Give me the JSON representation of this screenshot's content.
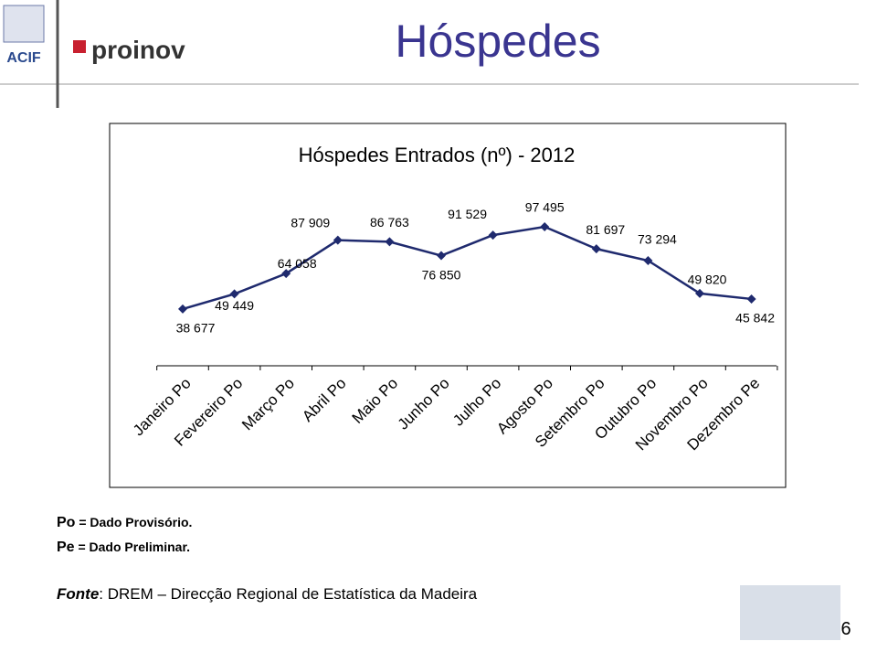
{
  "header": {
    "title": "Hóspedes",
    "logos": [
      "ACIF",
      "proinov"
    ]
  },
  "chart_data": {
    "type": "line",
    "title": "Hóspedes Entrados (nº) - 2012",
    "categories": [
      "Janeiro Po",
      "Fevereiro Po",
      "Março Po",
      "Abril Po",
      "Maio Po",
      "Junho Po",
      "Julho Po",
      "Agosto Po",
      "Setembro Po",
      "Outubro Po",
      "Novembro Po",
      "Dezembro Pe"
    ],
    "values": [
      38677,
      49449,
      64058,
      87909,
      86763,
      76850,
      91529,
      97495,
      81697,
      73294,
      49820,
      45842
    ],
    "value_labels": [
      "38 677",
      "49 449",
      "64 058",
      "87 909",
      "86 763",
      "76 850",
      "91 529",
      "97 495",
      "81 697",
      "73 294",
      "49 820",
      "45 842"
    ],
    "color": "#1f2a6e"
  },
  "notes": [
    {
      "key": "Po",
      "text": " = Dado Provisório."
    },
    {
      "key": "Pe",
      "text": " = Dado Preliminar."
    }
  ],
  "source": {
    "label": "Fonte",
    "text": ": DREM – Direcção Regional de Estatística da Madeira"
  },
  "page_number": "6"
}
